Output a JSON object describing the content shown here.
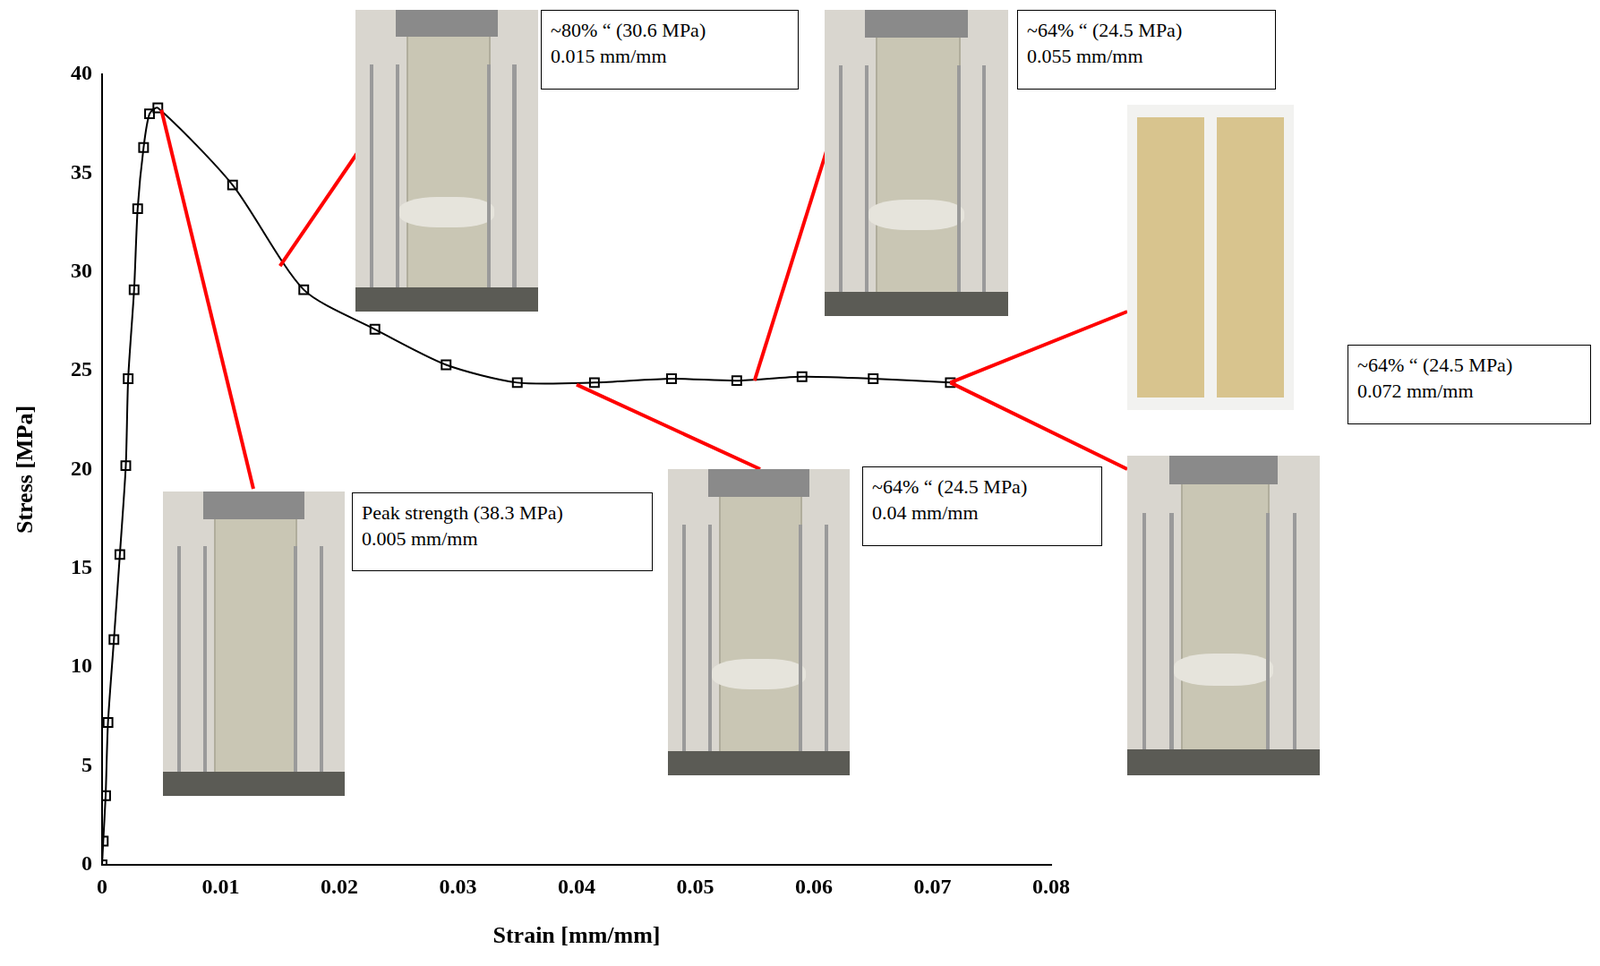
{
  "chart_data": {
    "type": "line",
    "x_label": "Strain [mm/mm]",
    "y_label": "Stress [MPa]",
    "x": [
      0,
      0.0001,
      0.0003,
      0.0005,
      0.001,
      0.0015,
      0.002,
      0.0022,
      0.0027,
      0.003,
      0.0035,
      0.004,
      0.0047,
      0.011,
      0.017,
      0.023,
      0.029,
      0.035,
      0.0415,
      0.048,
      0.0535,
      0.059,
      0.065,
      0.0715
    ],
    "values": [
      0,
      1.2,
      3.5,
      7.2,
      11.4,
      15.7,
      20.2,
      24.6,
      29.1,
      33.2,
      36.3,
      38.0,
      38.3,
      34.4,
      29.1,
      27.1,
      25.3,
      24.4,
      24.4,
      24.6,
      24.5,
      24.7,
      24.6,
      24.4
    ],
    "color": "#000000",
    "marker": "square",
    "xlim": [
      0,
      0.08
    ],
    "xticks": [
      0,
      0.01,
      0.02,
      0.03,
      0.04,
      0.05,
      0.06,
      0.07,
      0.08
    ],
    "ylim": [
      0,
      40
    ],
    "yticks": [
      0,
      5,
      10,
      15,
      20,
      25,
      30,
      35,
      40
    ],
    "grid": false,
    "annotations": [
      {
        "text": [
          "Peak strength (38.3 MPa)",
          "0.005 mm/mm"
        ],
        "x": 0.005,
        "y": 38.2
      },
      {
        "text": [
          "~80% “ (30.6 MPa)",
          "0.015 mm/mm"
        ],
        "x": 0.015,
        "y": 30.3
      },
      {
        "text": [
          "~64% “ (24.5 MPa)",
          "0.055 mm/mm"
        ],
        "x": 0.055,
        "y": 24.5
      },
      {
        "text": [
          "~64% “ (24.5 MPa)",
          "0.04 mm/mm"
        ],
        "x": 0.04,
        "y": 24.3
      },
      {
        "text": [
          "~64% “ (24.5 MPa)",
          "0.072 mm/mm"
        ],
        "x": 0.0715,
        "y": 24.4
      }
    ]
  }
}
